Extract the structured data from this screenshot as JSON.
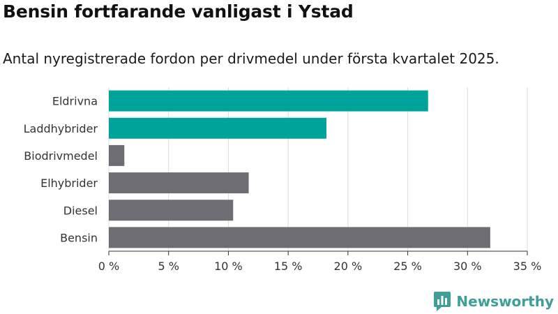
{
  "header": {
    "title": "Bensin fortfarande vanligast i Ystad",
    "subtitle": "Antal nyregistrerade fordon per drivmedel under första kvartalet 2025."
  },
  "brand": {
    "name": "Newsworthy",
    "icon": "newsworthy-logo-icon",
    "color": "#3f9e97"
  },
  "chart_data": {
    "type": "bar",
    "orientation": "horizontal",
    "categories": [
      "Eldrivna",
      "Laddhybrider",
      "Biodrivmedel",
      "Elhybrider",
      "Diesel",
      "Bensin"
    ],
    "values": [
      26.7,
      18.2,
      1.3,
      11.7,
      10.4,
      31.9
    ],
    "colors": [
      "#00a39a",
      "#00a39a",
      "#6e6d73",
      "#6e6d73",
      "#6e6d73",
      "#6e6d73"
    ],
    "xticks": [
      "0 %",
      "5 %",
      "10 %",
      "15 %",
      "20 %",
      "25 %",
      "30 %",
      "35 %"
    ],
    "xlim": [
      0,
      35
    ],
    "grid": true
  }
}
